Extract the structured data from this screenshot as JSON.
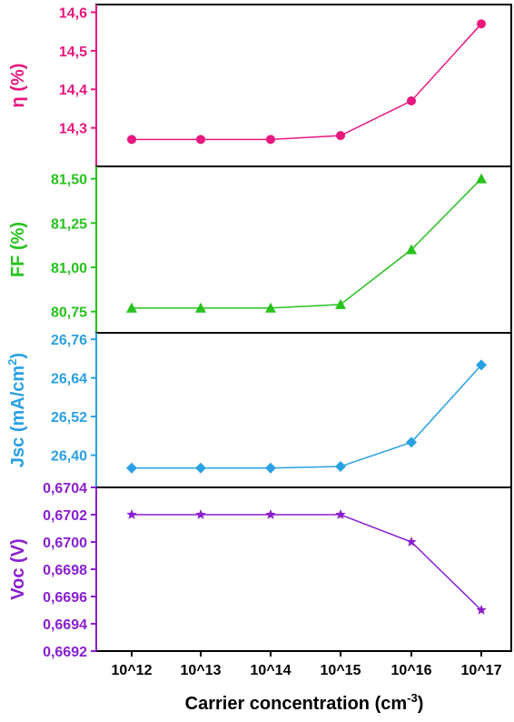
{
  "chart_data": {
    "type": "line",
    "layout": "stacked-panels-shared-x",
    "xlabel_parts": [
      "Carrier concentration (cm",
      "-3",
      ")"
    ],
    "categories": [
      "10^12",
      "10^13",
      "10^14",
      "10^15",
      "10^16",
      "10^17"
    ],
    "panels": [
      {
        "id": "eta",
        "ylabel_parts": [
          "η (%)"
        ],
        "color": "#e8177e",
        "marker": "circle",
        "ylim": [
          14.2,
          14.62
        ],
        "yticks": [
          14.3,
          14.4,
          14.5,
          14.6
        ],
        "ytick_labels": [
          "14,3",
          "14,4",
          "14,5",
          "14,6"
        ],
        "values": [
          14.27,
          14.27,
          14.27,
          14.28,
          14.37,
          14.57
        ]
      },
      {
        "id": "ff",
        "ylabel_parts": [
          "FF (%)"
        ],
        "color": "#27c21d",
        "marker": "triangle",
        "ylim": [
          80.63,
          81.57
        ],
        "yticks": [
          80.75,
          81.0,
          81.25,
          81.5
        ],
        "ytick_labels": [
          "80,75",
          "81,00",
          "81,25",
          "81,50"
        ],
        "values": [
          80.77,
          80.77,
          80.77,
          80.79,
          81.1,
          81.5
        ]
      },
      {
        "id": "jsc",
        "ylabel_parts": [
          "Jsc (mA/cm",
          "2",
          ")"
        ],
        "color": "#2aa0e3",
        "marker": "diamond",
        "ylim": [
          26.3,
          26.78
        ],
        "yticks": [
          26.4,
          26.52,
          26.64,
          26.76
        ],
        "ytick_labels": [
          "26,40",
          "26,52",
          "26,64",
          "26,76"
        ],
        "values": [
          26.36,
          26.36,
          26.36,
          26.365,
          26.44,
          26.68
        ]
      },
      {
        "id": "voc",
        "ylabel_parts": [
          "Voc (V)"
        ],
        "color": "#8a1fcf",
        "marker": "star",
        "ylim": [
          0.6692,
          0.6704
        ],
        "yticks": [
          0.6692,
          0.6694,
          0.6696,
          0.6698,
          0.67,
          0.6702,
          0.6704
        ],
        "ytick_labels": [
          "0,6692",
          "0,6694",
          "0,6696",
          "0,6698",
          "0,6700",
          "0,6702",
          "0,6704"
        ],
        "values": [
          0.6702,
          0.6702,
          0.6702,
          0.6702,
          0.67,
          0.6695
        ]
      }
    ]
  }
}
